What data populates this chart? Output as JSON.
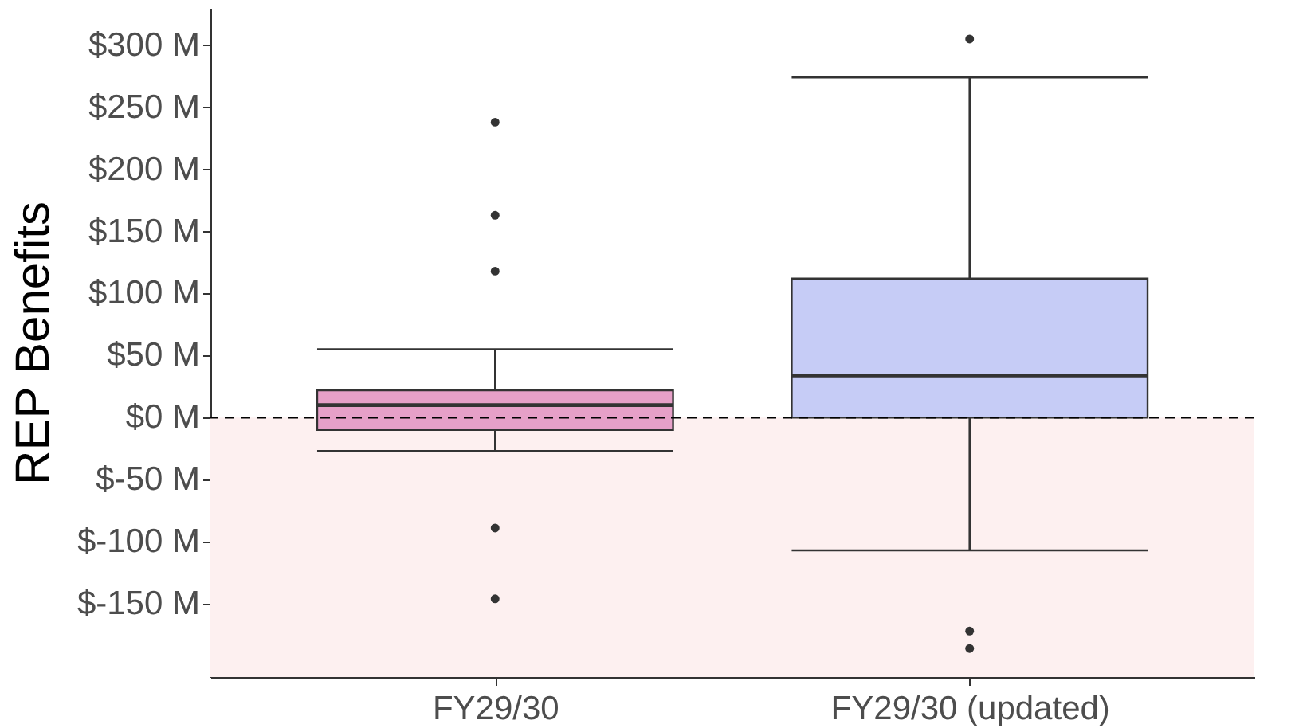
{
  "chart_data": {
    "type": "box",
    "ylabel": "REP Benefits",
    "categories": [
      "FY29/30",
      "FY29/30 (updated)"
    ],
    "colors": [
      "#e6a0c8",
      "#c6ccf6"
    ],
    "boxes": [
      {
        "low": -27,
        "q1": -10,
        "median": 10,
        "q3": 22,
        "high": 55,
        "outliers": [
          238,
          163,
          118,
          -89,
          -146
        ]
      },
      {
        "low": -107,
        "q1": 0,
        "median": 34,
        "q3": 112,
        "high": 274,
        "outliers": [
          305,
          -172,
          -186
        ]
      }
    ],
    "ylim": [
      -209,
      330
    ],
    "yticks": [
      {
        "value": -150,
        "label": "$-150 M"
      },
      {
        "value": -100,
        "label": "$-100 M"
      },
      {
        "value": -50,
        "label": "$-50 M"
      },
      {
        "value": 0,
        "label": "$0 M"
      },
      {
        "value": 50,
        "label": "$50 M"
      },
      {
        "value": 100,
        "label": "$100 M"
      },
      {
        "value": 150,
        "label": "$150 M"
      },
      {
        "value": 200,
        "label": "$200 M"
      },
      {
        "value": 250,
        "label": "$250 M"
      },
      {
        "value": 300,
        "label": "$300 M"
      }
    ],
    "ref_lines": [
      {
        "axis": "y",
        "value": 0,
        "line_style": "dashed",
        "color": "#000000"
      }
    ],
    "bands": [
      {
        "axis": "y",
        "from": -209,
        "to": 0,
        "color": "#fdf0f0"
      }
    ],
    "grid": false
  }
}
